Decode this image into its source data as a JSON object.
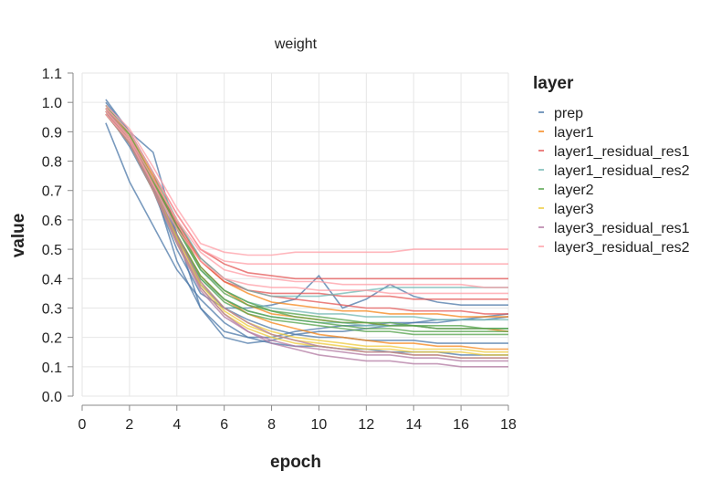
{
  "chart_data": {
    "type": "line",
    "title": "weight",
    "xlabel": "epoch",
    "ylabel": "value",
    "xlim": [
      0,
      18
    ],
    "ylim": [
      0,
      1.1
    ],
    "xticks": [
      0,
      2,
      4,
      6,
      8,
      10,
      12,
      14,
      16,
      18
    ],
    "xtick_labels": [
      "0",
      "2",
      "4",
      "6",
      "8",
      "10",
      "12",
      "14",
      "16",
      "18"
    ],
    "yticks": [
      0,
      0.1,
      0.2,
      0.3,
      0.4,
      0.5,
      0.6,
      0.7,
      0.8,
      0.9,
      1.0,
      1.1
    ],
    "ytick_labels": [
      "0.0",
      "0.1",
      "0.2",
      "0.3",
      "0.4",
      "0.5",
      "0.6",
      "0.7",
      "0.8",
      "0.9",
      "1.0",
      "1.1"
    ],
    "grid": true,
    "legend": {
      "title": "layer",
      "position": "right",
      "entries": [
        {
          "label": "prep",
          "color": "#4c78a8"
        },
        {
          "label": "layer1",
          "color": "#f58518"
        },
        {
          "label": "layer1_residual_res1",
          "color": "#e45756"
        },
        {
          "label": "layer1_residual_res2",
          "color": "#72b7b2"
        },
        {
          "label": "layer2",
          "color": "#54a24b"
        },
        {
          "label": "layer3",
          "color": "#eeca3b"
        },
        {
          "label": "layer3_residual_res1",
          "color": "#b279a2"
        },
        {
          "label": "layer3_residual_res2",
          "color": "#ff9da6"
        }
      ]
    },
    "x": [
      1,
      2,
      3,
      4,
      5,
      6,
      7,
      8,
      9,
      10,
      11,
      12,
      13,
      14,
      15,
      16,
      17,
      18
    ],
    "series": [
      {
        "name": "prep",
        "color": "#4c78a8",
        "values": [
          [
            1.01,
            0.9,
            0.83,
            0.55,
            0.3,
            0.2,
            0.18,
            0.19,
            0.21,
            0.22,
            0.22,
            0.23,
            0.24,
            0.25,
            0.25,
            0.26,
            0.26,
            0.27
          ],
          [
            0.93,
            0.73,
            0.58,
            0.43,
            0.33,
            0.25,
            0.2,
            0.18,
            0.17,
            0.17,
            0.16,
            0.16,
            0.15,
            0.15,
            0.15,
            0.14,
            0.14,
            0.14
          ],
          [
            0.98,
            0.88,
            0.72,
            0.46,
            0.3,
            0.22,
            0.2,
            0.2,
            0.22,
            0.23,
            0.24,
            0.24,
            0.25,
            0.25,
            0.26,
            0.26,
            0.27,
            0.28
          ],
          [
            1.0,
            0.9,
            0.76,
            0.55,
            0.38,
            0.3,
            0.26,
            0.23,
            0.21,
            0.2,
            0.2,
            0.19,
            0.19,
            0.19,
            0.18,
            0.18,
            0.18,
            0.18
          ],
          [
            0.97,
            0.85,
            0.7,
            0.5,
            0.35,
            0.3,
            0.3,
            0.31,
            0.33,
            0.41,
            0.3,
            0.33,
            0.38,
            0.34,
            0.32,
            0.31,
            0.31,
            0.31
          ]
        ]
      },
      {
        "name": "layer1",
        "color": "#f58518",
        "values": [
          [
            0.97,
            0.88,
            0.73,
            0.58,
            0.44,
            0.36,
            0.31,
            0.28,
            0.27,
            0.26,
            0.25,
            0.25,
            0.24,
            0.24,
            0.23,
            0.23,
            0.23,
            0.22
          ],
          [
            0.96,
            0.86,
            0.7,
            0.55,
            0.41,
            0.33,
            0.28,
            0.25,
            0.23,
            0.21,
            0.2,
            0.19,
            0.18,
            0.18,
            0.17,
            0.17,
            0.16,
            0.16
          ],
          [
            0.98,
            0.89,
            0.75,
            0.6,
            0.46,
            0.39,
            0.35,
            0.32,
            0.31,
            0.3,
            0.29,
            0.29,
            0.28,
            0.28,
            0.28,
            0.27,
            0.27,
            0.27
          ]
        ]
      },
      {
        "name": "layer1_residual_res1",
        "color": "#e45756",
        "values": [
          [
            0.98,
            0.9,
            0.76,
            0.62,
            0.5,
            0.45,
            0.42,
            0.41,
            0.4,
            0.4,
            0.4,
            0.4,
            0.4,
            0.4,
            0.4,
            0.4,
            0.4,
            0.4
          ],
          [
            0.96,
            0.87,
            0.72,
            0.58,
            0.46,
            0.39,
            0.36,
            0.34,
            0.33,
            0.32,
            0.31,
            0.3,
            0.3,
            0.29,
            0.29,
            0.29,
            0.28,
            0.28
          ],
          [
            0.97,
            0.88,
            0.74,
            0.59,
            0.47,
            0.4,
            0.36,
            0.35,
            0.35,
            0.35,
            0.34,
            0.34,
            0.34,
            0.33,
            0.33,
            0.33,
            0.33,
            0.33
          ]
        ]
      },
      {
        "name": "layer1_residual_res2",
        "color": "#72b7b2",
        "values": [
          [
            0.99,
            0.9,
            0.76,
            0.6,
            0.47,
            0.4,
            0.36,
            0.34,
            0.34,
            0.34,
            0.35,
            0.36,
            0.37,
            0.37,
            0.37,
            0.37,
            0.37,
            0.37
          ],
          [
            0.97,
            0.88,
            0.72,
            0.57,
            0.43,
            0.36,
            0.32,
            0.3,
            0.29,
            0.28,
            0.28,
            0.27,
            0.27,
            0.27,
            0.26,
            0.26,
            0.26,
            0.26
          ],
          [
            0.96,
            0.86,
            0.7,
            0.54,
            0.4,
            0.33,
            0.29,
            0.27,
            0.26,
            0.25,
            0.25,
            0.24,
            0.24,
            0.24,
            0.23,
            0.23,
            0.23,
            0.23
          ]
        ]
      },
      {
        "name": "layer2",
        "color": "#54a24b",
        "values": [
          [
            0.98,
            0.88,
            0.73,
            0.57,
            0.43,
            0.35,
            0.31,
            0.29,
            0.27,
            0.26,
            0.25,
            0.25,
            0.24,
            0.24,
            0.23,
            0.23,
            0.23,
            0.23
          ],
          [
            0.97,
            0.87,
            0.71,
            0.55,
            0.41,
            0.33,
            0.29,
            0.27,
            0.26,
            0.25,
            0.24,
            0.23,
            0.23,
            0.22,
            0.22,
            0.22,
            0.22,
            0.22
          ],
          [
            0.99,
            0.89,
            0.74,
            0.58,
            0.44,
            0.36,
            0.32,
            0.29,
            0.28,
            0.27,
            0.26,
            0.25,
            0.25,
            0.24,
            0.24,
            0.24,
            0.23,
            0.23
          ],
          [
            0.96,
            0.86,
            0.7,
            0.54,
            0.4,
            0.32,
            0.28,
            0.26,
            0.25,
            0.24,
            0.23,
            0.22,
            0.22,
            0.21,
            0.21,
            0.21,
            0.21,
            0.21
          ]
        ]
      },
      {
        "name": "layer3",
        "color": "#eeca3b",
        "values": [
          [
            0.97,
            0.87,
            0.71,
            0.53,
            0.38,
            0.29,
            0.24,
            0.21,
            0.19,
            0.18,
            0.17,
            0.16,
            0.16,
            0.15,
            0.15,
            0.15,
            0.14,
            0.14
          ],
          [
            0.98,
            0.88,
            0.72,
            0.54,
            0.39,
            0.3,
            0.25,
            0.22,
            0.2,
            0.19,
            0.18,
            0.17,
            0.17,
            0.16,
            0.16,
            0.16,
            0.15,
            0.15
          ],
          [
            0.96,
            0.86,
            0.7,
            0.52,
            0.37,
            0.28,
            0.23,
            0.2,
            0.18,
            0.17,
            0.16,
            0.15,
            0.15,
            0.14,
            0.14,
            0.13,
            0.13,
            0.13
          ]
        ]
      },
      {
        "name": "layer3_residual_res1",
        "color": "#b279a2",
        "values": [
          [
            0.97,
            0.87,
            0.71,
            0.53,
            0.37,
            0.28,
            0.22,
            0.18,
            0.16,
            0.14,
            0.13,
            0.12,
            0.12,
            0.11,
            0.11,
            0.1,
            0.1,
            0.1
          ],
          [
            0.98,
            0.88,
            0.72,
            0.55,
            0.39,
            0.3,
            0.25,
            0.21,
            0.19,
            0.17,
            0.16,
            0.15,
            0.15,
            0.14,
            0.14,
            0.13,
            0.13,
            0.13
          ],
          [
            0.96,
            0.86,
            0.7,
            0.52,
            0.36,
            0.27,
            0.22,
            0.19,
            0.17,
            0.16,
            0.15,
            0.14,
            0.14,
            0.13,
            0.13,
            0.12,
            0.12,
            0.12
          ]
        ]
      },
      {
        "name": "layer3_residual_res2",
        "color": "#ff9da6",
        "values": [
          [
            0.99,
            0.91,
            0.78,
            0.64,
            0.52,
            0.49,
            0.48,
            0.48,
            0.49,
            0.49,
            0.49,
            0.49,
            0.49,
            0.5,
            0.5,
            0.5,
            0.5,
            0.5
          ],
          [
            0.98,
            0.9,
            0.76,
            0.62,
            0.5,
            0.46,
            0.45,
            0.45,
            0.45,
            0.45,
            0.45,
            0.45,
            0.45,
            0.45,
            0.45,
            0.45,
            0.45,
            0.45
          ],
          [
            0.97,
            0.88,
            0.74,
            0.6,
            0.49,
            0.43,
            0.41,
            0.4,
            0.39,
            0.39,
            0.38,
            0.38,
            0.38,
            0.38,
            0.38,
            0.38,
            0.37,
            0.37
          ],
          [
            0.96,
            0.87,
            0.72,
            0.57,
            0.46,
            0.4,
            0.38,
            0.37,
            0.37,
            0.36,
            0.36,
            0.36,
            0.35,
            0.35,
            0.35,
            0.35,
            0.35,
            0.35
          ]
        ]
      }
    ]
  }
}
